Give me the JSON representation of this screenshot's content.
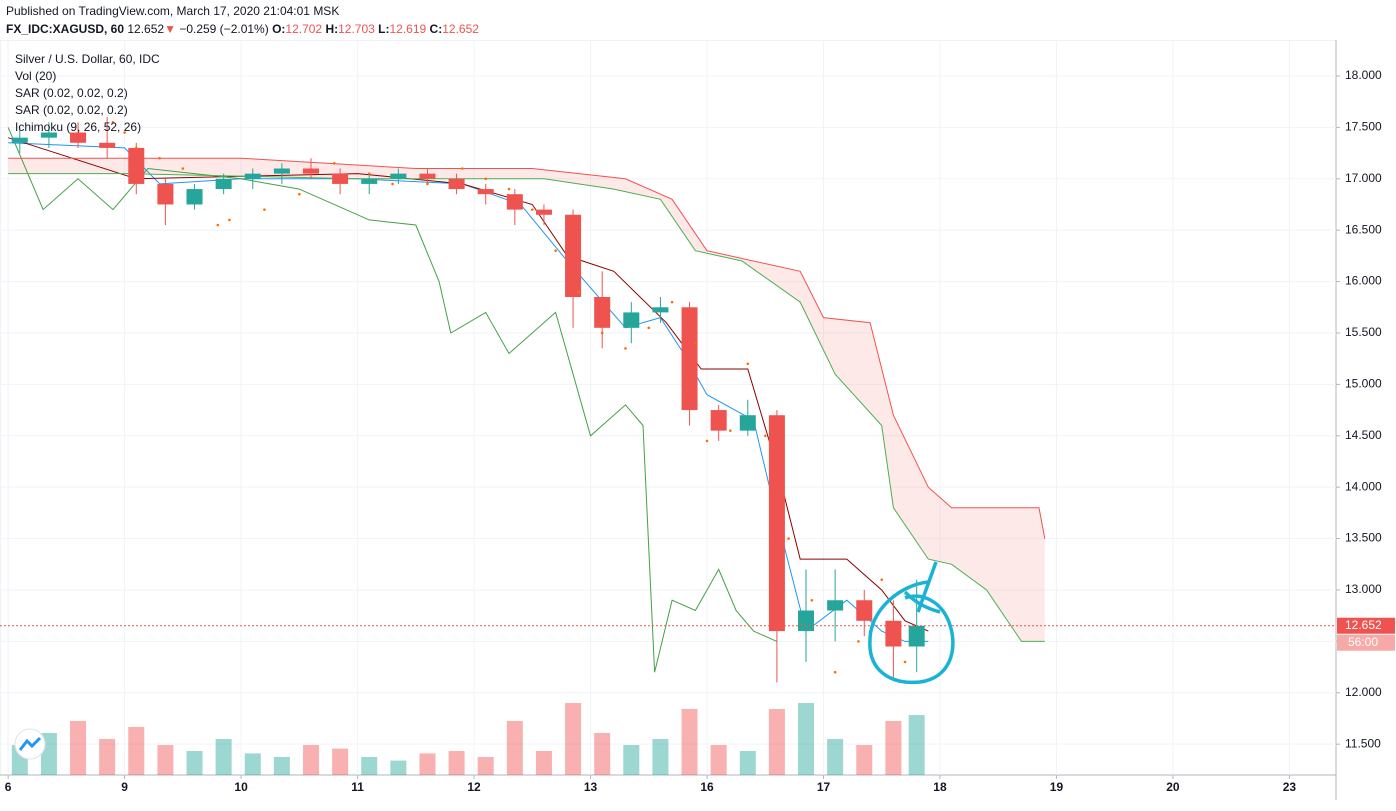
{
  "published": "Published on TradingView.com, March 17, 2020 21:04:01 MSK",
  "header": {
    "symbol": "FX_IDC:XAGUSD, 60",
    "last": 12.652,
    "arrow": "▼",
    "change": "−0.259 (−2.01%)",
    "o_label": "O:",
    "open": 12.702,
    "h_label": "H:",
    "high": 12.703,
    "l_label": "L:",
    "low": 12.619,
    "c_label": "C:",
    "close": 12.652
  },
  "legend": [
    "Silver / U.S. Dollar, 60, IDC",
    "Vol (20)",
    "SAR (0.02, 0.02, 0.2)",
    "SAR (0.02, 0.02, 0.2)",
    "Ichimoku (9, 26, 52, 26)"
  ],
  "countdown": "56:00",
  "chart_data": {
    "type": "candlestick",
    "up_color": "#26a69a",
    "down_color": "#ef5350",
    "grid": true,
    "xlim": [
      -0.07,
      11.4
    ],
    "ylim": [
      11.2,
      18.35
    ],
    "vlim": [
      0,
      100
    ],
    "xticks": [
      {
        "value": 0,
        "label": "6"
      },
      {
        "value": 1,
        "label": "9"
      },
      {
        "value": 2,
        "label": "10"
      },
      {
        "value": 3,
        "label": "11"
      },
      {
        "value": 4,
        "label": "12"
      },
      {
        "value": 5,
        "label": "13"
      },
      {
        "value": 6,
        "label": "16"
      },
      {
        "value": 7,
        "label": "17"
      },
      {
        "value": 8,
        "label": "18"
      },
      {
        "value": 9,
        "label": "19"
      },
      {
        "value": 10,
        "label": "20"
      },
      {
        "value": 11,
        "label": "23"
      }
    ],
    "yticks": [
      {
        "value": 11.5,
        "label": "11.500"
      },
      {
        "value": 12,
        "label": "12.000"
      },
      {
        "value": 12.5,
        "label": "12.500"
      },
      {
        "value": 13,
        "label": "13.000"
      },
      {
        "value": 13.5,
        "label": "13.500"
      },
      {
        "value": 14,
        "label": "14.000"
      },
      {
        "value": 14.5,
        "label": "14.500"
      },
      {
        "value": 15,
        "label": "15.000"
      },
      {
        "value": 15.5,
        "label": "15.500"
      },
      {
        "value": 16,
        "label": "16.000"
      },
      {
        "value": 16.5,
        "label": "16.500"
      },
      {
        "value": 17,
        "label": "17.000"
      },
      {
        "value": 17.5,
        "label": "17.500"
      },
      {
        "value": 18,
        "label": "18.000"
      }
    ],
    "price_line": 12.652,
    "x": [
      0.1,
      0.35,
      0.6,
      0.85,
      1.1,
      1.35,
      1.6,
      1.85,
      2.1,
      2.35,
      2.6,
      2.85,
      3.1,
      3.35,
      3.6,
      3.85,
      4.1,
      4.35,
      4.6,
      4.85,
      5.1,
      5.35,
      5.6,
      5.85,
      6.1,
      6.35,
      6.6,
      6.85,
      7.1,
      7.35,
      7.6,
      7.8
    ],
    "open": [
      17.35,
      17.4,
      17.45,
      17.35,
      17.3,
      16.95,
      16.75,
      16.9,
      17.0,
      17.05,
      17.1,
      17.05,
      16.95,
      17.0,
      17.05,
      17.0,
      16.9,
      16.85,
      16.7,
      16.65,
      15.85,
      15.55,
      15.7,
      15.75,
      14.75,
      14.55,
      14.7,
      12.6,
      12.8,
      12.9,
      12.7,
      12.45
    ],
    "high": [
      17.5,
      17.55,
      17.55,
      17.6,
      17.35,
      17.0,
      16.95,
      17.05,
      17.1,
      17.15,
      17.2,
      17.1,
      17.05,
      17.1,
      17.1,
      17.05,
      16.95,
      16.9,
      16.75,
      16.7,
      16.1,
      15.8,
      15.85,
      15.8,
      14.8,
      14.85,
      14.75,
      13.2,
      13.2,
      13.0,
      12.9,
      13.1
    ],
    "low": [
      17.25,
      17.3,
      17.3,
      17.2,
      16.85,
      16.55,
      16.7,
      16.85,
      16.9,
      16.95,
      17.0,
      16.85,
      16.85,
      16.95,
      16.95,
      16.85,
      16.75,
      16.55,
      16.55,
      15.55,
      15.35,
      15.4,
      15.6,
      14.6,
      14.45,
      14.5,
      12.1,
      12.3,
      12.5,
      12.55,
      12.15,
      12.2
    ],
    "close": [
      17.4,
      17.45,
      17.35,
      17.3,
      16.95,
      16.75,
      16.9,
      17.0,
      17.05,
      17.1,
      17.05,
      16.95,
      17.0,
      17.05,
      17.0,
      16.9,
      16.85,
      16.7,
      16.65,
      15.85,
      15.55,
      15.7,
      15.75,
      14.75,
      14.55,
      14.7,
      12.6,
      12.8,
      12.9,
      12.7,
      12.45,
      12.652
    ],
    "volume": [
      25,
      35,
      45,
      30,
      40,
      25,
      20,
      30,
      18,
      15,
      25,
      22,
      15,
      12,
      18,
      20,
      15,
      45,
      20,
      60,
      35,
      25,
      30,
      55,
      25,
      20,
      55,
      60,
      30,
      25,
      45,
      50
    ],
    "lines": [
      {
        "name": "tenkan",
        "color": "#2196f3",
        "x": [
          0,
          1,
          1.3,
          2,
          3,
          3.9,
          4.4,
          4.8,
          5.3,
          5.6,
          5.8,
          6.0,
          6.4,
          6.6,
          6.85,
          7.2,
          7.5,
          7.7,
          7.9
        ],
        "values": [
          17.35,
          17.3,
          16.95,
          17.0,
          17.0,
          16.95,
          16.75,
          16.2,
          15.55,
          15.65,
          15.3,
          14.9,
          14.65,
          13.7,
          12.6,
          12.9,
          12.6,
          12.5,
          12.5
        ]
      },
      {
        "name": "kijun",
        "color": "#8b0000",
        "x": [
          0,
          1.1,
          3.0,
          3.9,
          4.5,
          4.8,
          5.2,
          5.65,
          5.95,
          6.35,
          6.6,
          6.8,
          7.2,
          7.5,
          7.7,
          7.9
        ],
        "values": [
          17.4,
          17.0,
          17.05,
          16.95,
          16.75,
          16.25,
          16.1,
          15.6,
          15.15,
          15.15,
          14.2,
          13.3,
          13.3,
          13.0,
          12.7,
          12.6
        ]
      },
      {
        "name": "chikou",
        "color": "#43a047",
        "x": [
          0,
          0.3,
          0.6,
          0.9,
          1.2,
          2.0,
          2.5,
          3.1,
          3.5,
          3.7,
          3.8,
          4.1,
          4.3,
          4.7,
          5.0,
          5.3,
          5.45,
          5.55,
          5.7,
          5.9,
          6.1,
          6.25,
          6.4,
          6.6
        ],
        "values": [
          17.5,
          16.7,
          17.0,
          16.7,
          17.1,
          17.0,
          16.9,
          16.6,
          16.55,
          16.0,
          15.5,
          15.7,
          15.3,
          15.7,
          14.5,
          14.8,
          14.6,
          12.2,
          12.9,
          12.8,
          13.2,
          12.8,
          12.6,
          12.5
        ]
      },
      {
        "name": "span-a",
        "color": "#4caf50",
        "x": [
          0,
          1,
          3,
          4,
          4.6,
          5.2,
          5.6,
          5.9,
          6.3,
          6.8,
          7.1,
          7.5,
          7.6,
          7.9,
          8.1,
          8.4,
          8.7,
          8.9
        ],
        "values": [
          17.05,
          17.05,
          17.0,
          17.0,
          17.0,
          16.9,
          16.8,
          16.3,
          16.2,
          15.8,
          15.1,
          14.6,
          13.8,
          13.3,
          13.25,
          13.0,
          12.5,
          12.5
        ]
      },
      {
        "name": "span-b",
        "color": "#ef5350",
        "x": [
          0,
          2,
          3.5,
          4.5,
          5.3,
          5.7,
          6.0,
          6.8,
          7.0,
          7.4,
          7.6,
          7.9,
          8.1,
          8.85,
          8.9
        ],
        "values": [
          17.2,
          17.2,
          17.1,
          17.1,
          17.0,
          16.8,
          16.3,
          16.1,
          15.65,
          15.6,
          14.7,
          14.0,
          13.8,
          13.8,
          13.5
        ]
      }
    ],
    "sar": {
      "color": "#ff6d00",
      "x": [
        0.9,
        1.0,
        1.1,
        1.3,
        1.5,
        1.8,
        1.9,
        2.2,
        2.5,
        2.8,
        3.1,
        3.3,
        3.6,
        3.9,
        4.1,
        4.3,
        4.5,
        4.7,
        4.9,
        5.1,
        5.3,
        5.5,
        5.7,
        5.9,
        6.0,
        6.2,
        6.35,
        6.5,
        6.7,
        6.9,
        7.1,
        7.3,
        7.5,
        7.7
      ],
      "values": [
        17.55,
        17.45,
        17.3,
        17.2,
        17.1,
        16.55,
        16.6,
        16.7,
        16.85,
        17.15,
        17.05,
        16.95,
        16.95,
        17.1,
        17.0,
        16.9,
        16.7,
        16.3,
        15.9,
        15.5,
        15.35,
        15.55,
        15.8,
        15.4,
        14.45,
        14.55,
        15.2,
        14.5,
        13.5,
        12.9,
        12.2,
        12.5,
        13.1,
        12.3
      ]
    }
  }
}
